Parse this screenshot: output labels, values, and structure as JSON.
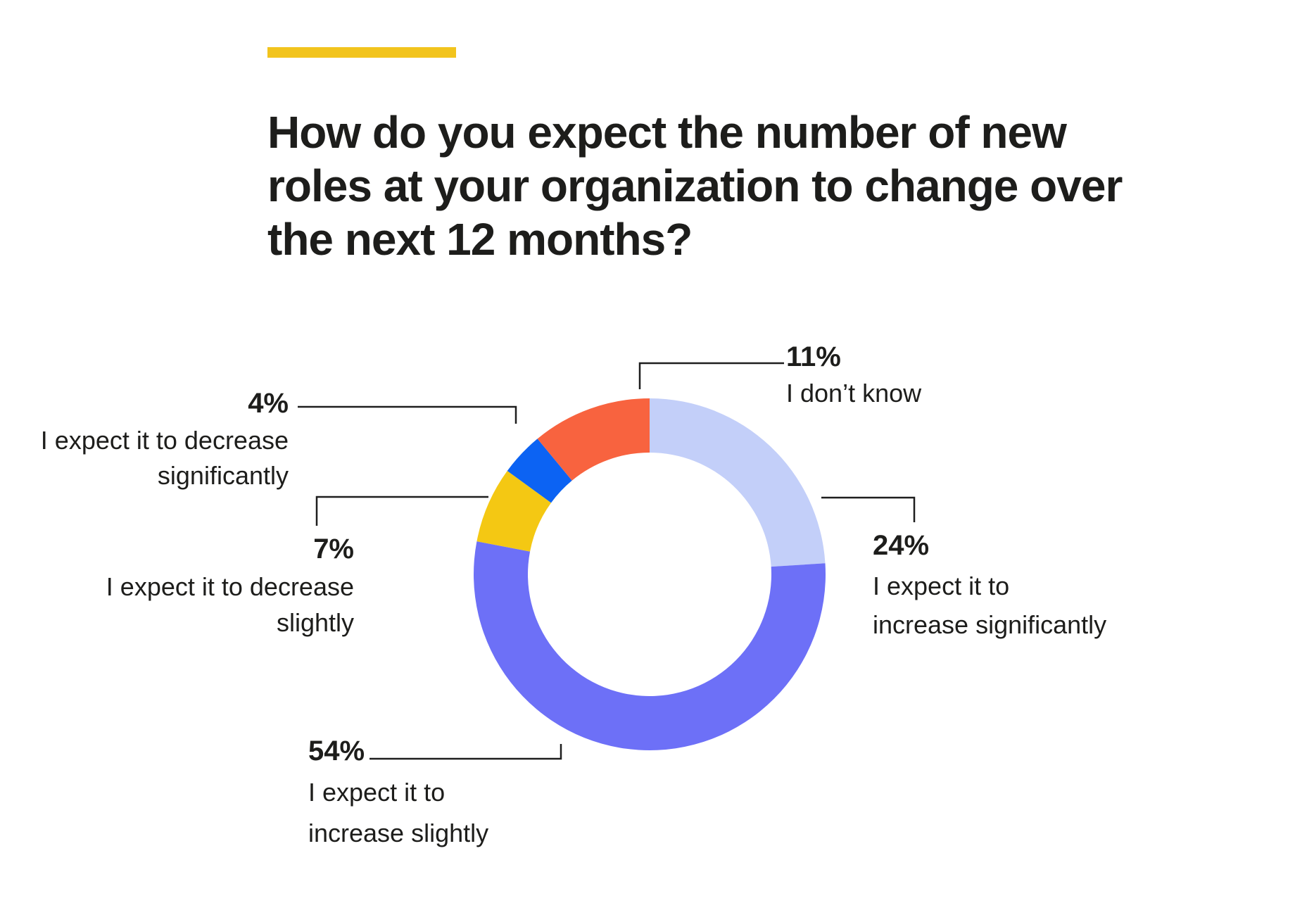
{
  "page": {
    "background": "#ffffff",
    "text_color": "#1d1d1b",
    "accent_color": "#F2C41D",
    "callout_line_color": "#1e1e1e"
  },
  "header": {
    "title": "How do you expect the number of new roles at your organization to change over the next 12 months?",
    "title_lines": [
      "How do you expect the number of new",
      "roles at your organization to change over",
      "the next 12 months?"
    ]
  },
  "chart_data": {
    "type": "pie",
    "subtype": "donut",
    "title": "How do you expect the number of new roles at your organization to change over the next 12 months?",
    "unit": "%",
    "start_position": "12-oclock",
    "direction": "clockwise",
    "donut_hole_ratio": 0.69,
    "legend_position": "callout-labels",
    "segments": [
      {
        "label": "I expect it to increase significantly",
        "value": 24,
        "pct_label": "24%",
        "color": "#C3CFF9"
      },
      {
        "label": "I expect it to increase slightly",
        "value": 54,
        "pct_label": "54%",
        "color": "#6D70F7"
      },
      {
        "label": "I expect it to decrease slightly",
        "value": 7,
        "pct_label": "7%",
        "color": "#F4C813"
      },
      {
        "label": "I expect it to decrease significantly",
        "value": 4,
        "pct_label": "4%",
        "color": "#0C63F3"
      },
      {
        "label": "I don’t know",
        "value": 11,
        "pct_label": "11%",
        "color": "#F8633F"
      }
    ]
  },
  "callouts": {
    "dont_know": {
      "pct": "11%",
      "lines": [
        "I don’t know"
      ]
    },
    "increase_significantly": {
      "pct": "24%",
      "lines": [
        "I expect it to",
        "increase significantly"
      ]
    },
    "decrease_significantly": {
      "pct": "4%",
      "lines": [
        "I expect it to decrease",
        "significantly"
      ]
    },
    "decrease_slightly": {
      "pct": "7%",
      "lines": [
        "I expect it to decrease",
        "slightly"
      ]
    },
    "increase_slightly": {
      "pct": "54%",
      "lines": [
        "I expect it to",
        "increase slightly"
      ]
    }
  }
}
